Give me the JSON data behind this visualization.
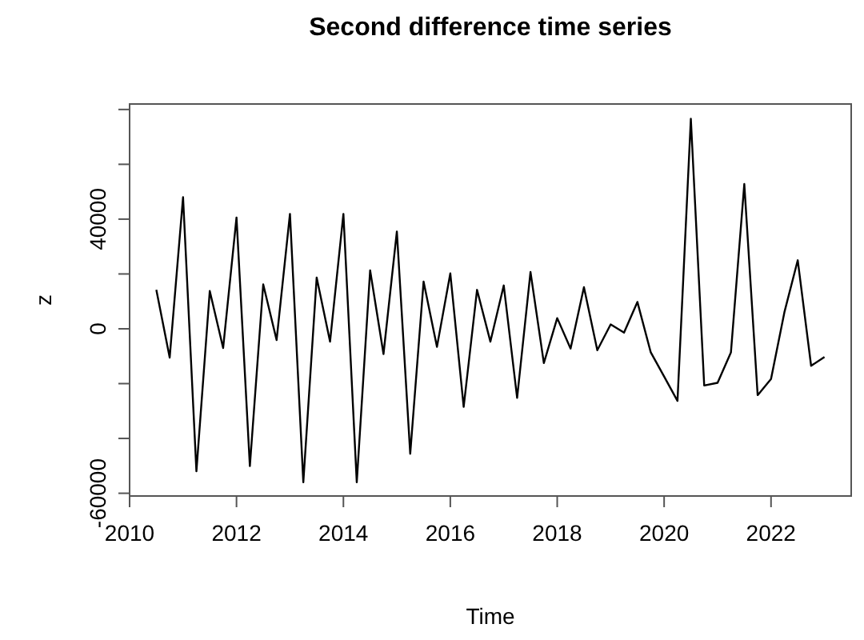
{
  "chart_data": {
    "type": "line",
    "title": "Second difference time series",
    "xlabel": "Time",
    "ylabel": "z",
    "x": [
      2010.5,
      2010.75,
      2011,
      2011.25,
      2011.5,
      2011.75,
      2012,
      2012.25,
      2012.5,
      2012.75,
      2013,
      2013.25,
      2013.5,
      2013.75,
      2014,
      2014.25,
      2014.5,
      2014.75,
      2015,
      2015.25,
      2015.5,
      2015.75,
      2016,
      2016.25,
      2016.5,
      2016.75,
      2017,
      2017.25,
      2017.5,
      2017.75,
      2018,
      2018.25,
      2018.5,
      2018.75,
      2019,
      2019.25,
      2019.5,
      2019.75,
      2020,
      2020.25,
      2020.5,
      2020.75,
      2021,
      2021.25,
      2021.5,
      2021.75,
      2022,
      2022.25,
      2022.5,
      2022.75,
      2023
    ],
    "series": [
      {
        "color": "#000000",
        "values": [
          14200,
          -10500,
          48000,
          -52000,
          13800,
          -7000,
          40600,
          -50100,
          16200,
          -4100,
          41900,
          -56000,
          18700,
          -4700,
          41900,
          -56000,
          21300,
          -9200,
          35500,
          -45600,
          17200,
          -6600,
          20200,
          -28500,
          14200,
          -4700,
          15800,
          -25200,
          20700,
          -12500,
          3900,
          -7200,
          15200,
          -7800,
          1600,
          -1400,
          9800,
          -8600,
          -17400,
          -26300,
          76600,
          -20700,
          -19700,
          -8600,
          52800,
          -24200,
          -18300,
          6000,
          25000,
          -13500,
          -10300
        ]
      }
    ],
    "xlim": [
      2010,
      2023.5
    ],
    "xticks": [
      2010,
      2012,
      2014,
      2016,
      2018,
      2020,
      2022
    ],
    "ylim": [
      -61000,
      82000
    ],
    "yticks": [
      -60000,
      {
        "value": -40000,
        "label": null
      },
      {
        "value": -20000,
        "label": null
      },
      0,
      {
        "value": 20000,
        "label": null
      },
      40000,
      {
        "value": 60000,
        "label": null
      },
      {
        "value": 80000,
        "label": null
      }
    ],
    "marker": "none",
    "line_style": "solid"
  }
}
